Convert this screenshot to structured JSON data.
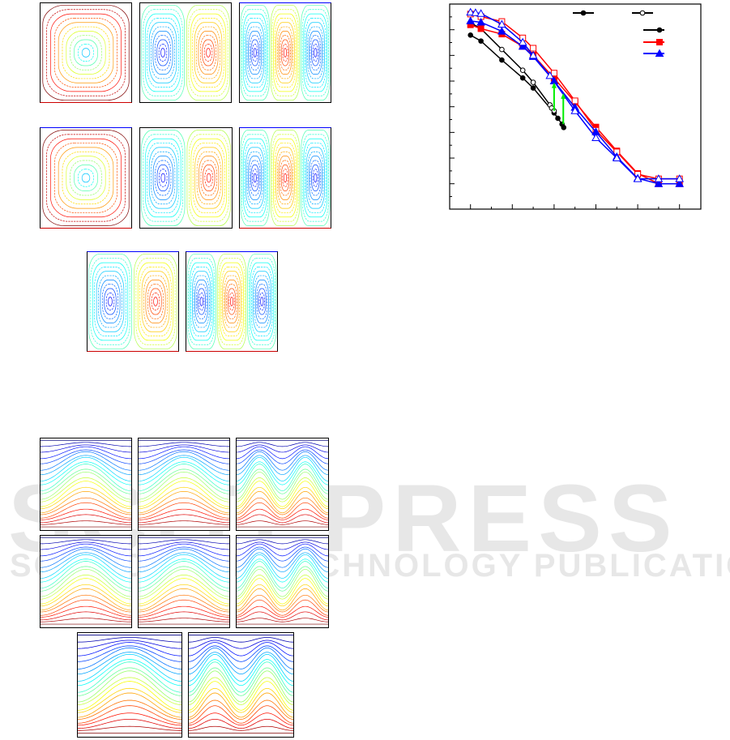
{
  "watermark": {
    "line1": "SCITEPRESS",
    "line2": "SCIENCE AND TECHNOLOGY PUBLICATIONS"
  },
  "colors": {
    "black": "#000000",
    "red": "#ff0000",
    "blue": "#0000ff",
    "arrow": "#00ee00"
  },
  "streamline_panels": [
    {
      "cells": 1,
      "top": "#000000",
      "bottom": "#cc0000"
    },
    {
      "cells": 2,
      "top": "#000000",
      "bottom": "#000000"
    },
    {
      "cells": 3,
      "top": "#0000ff",
      "bottom": "#000000"
    },
    {
      "cells": 1,
      "top": "#0000ff",
      "bottom": "#cc0000"
    },
    {
      "cells": 2,
      "top": "#000000",
      "bottom": "#000000"
    },
    {
      "cells": 3,
      "top": "#0000ff",
      "bottom": "#cc0000"
    },
    {
      "cells": 2,
      "top": "#0000ff",
      "bottom": "#cc0000"
    },
    {
      "cells": 3,
      "top": "#0000ff",
      "bottom": "#cc0000"
    }
  ],
  "isotherm_panels": [
    {
      "waves": 1
    },
    {
      "waves": 1
    },
    {
      "waves": 2
    },
    {
      "waves": 1
    },
    {
      "waves": 1
    },
    {
      "waves": 2
    },
    {
      "waves": 1
    },
    {
      "waves": 2
    }
  ],
  "chart_data": {
    "type": "line",
    "title": "",
    "xlabel": "",
    "ylabel": "",
    "xlim": [
      -0.5,
      5.5
    ],
    "ylim": [
      -0.7,
      7.0
    ],
    "xticks_major": [
      0,
      1,
      2,
      3,
      4,
      5
    ],
    "yticks_major": [
      0,
      1,
      2,
      3,
      4,
      5,
      6
    ],
    "grid": false,
    "legend": "top-right",
    "series": [
      {
        "color": "#000000",
        "marker": "circle-filled",
        "x": [
          0,
          0.25,
          0.75,
          1.25,
          1.5,
          2.0,
          2.09,
          2.19,
          2.23
        ],
        "y": [
          5.79,
          5.56,
          4.82,
          4.12,
          3.73,
          2.76,
          2.55,
          2.32,
          2.19
        ]
      },
      {
        "color": "#000000",
        "marker": "circle-open",
        "x": [
          0,
          0.25,
          0.75,
          1.25,
          1.5,
          1.9,
          1.94,
          2.0
        ],
        "y": [
          6.27,
          6.04,
          5.23,
          4.42,
          3.95,
          3.07,
          2.95,
          2.84
        ]
      },
      {
        "color": "#ff0000",
        "marker": "square-filled",
        "x": [
          0,
          0.25,
          0.75,
          1.25,
          1.5,
          2.0,
          2.5,
          3.0,
          3.5,
          4.0,
          4.5,
          5.0
        ],
        "y": [
          6.19,
          6.04,
          5.83,
          5.35,
          5.01,
          4.11,
          3.18,
          2.21,
          1.28,
          0.4,
          0,
          0
        ]
      },
      {
        "color": "#ff0000",
        "marker": "square-open",
        "x": [
          0,
          0.25,
          0.75,
          1.25,
          1.5,
          2.0,
          2.5,
          3.0,
          3.5,
          4.0,
          4.5,
          5.0
        ],
        "y": [
          6.61,
          6.51,
          6.32,
          5.68,
          5.28,
          4.31,
          3.23,
          2.08,
          1.24,
          0.37,
          0.19,
          0.19
        ]
      },
      {
        "color": "#0000ff",
        "marker": "triangle-filled",
        "x": [
          0,
          0.25,
          0.75,
          1.25,
          1.5,
          2.0,
          2.5,
          3.0,
          3.5,
          4.0,
          4.5,
          5.0
        ],
        "y": [
          6.34,
          6.29,
          5.94,
          5.35,
          4.95,
          4.0,
          2.97,
          2.02,
          1.05,
          0.21,
          0,
          0
        ]
      },
      {
        "color": "#0000ff",
        "marker": "triangle-open",
        "x": [
          0,
          0.12,
          0.25,
          0.75,
          1.25,
          1.5,
          1.9,
          2.5,
          3.0,
          3.5,
          4.0,
          4.5,
          5.0
        ],
        "y": [
          6.68,
          6.66,
          6.63,
          6.21,
          5.51,
          5.0,
          4.21,
          2.84,
          1.79,
          1.0,
          0.19,
          0.19,
          0.19
        ]
      }
    ],
    "arrows": [
      {
        "x": 2.0,
        "y_from": 2.84,
        "y_to": 3.95,
        "color": "#00ee00"
      },
      {
        "x": 2.22,
        "y_from": 2.32,
        "y_to": 3.53,
        "color": "#00ee00"
      }
    ],
    "legend_entries": [
      {
        "color": "#000000",
        "marker": "circle-filled"
      },
      {
        "color": "#000000",
        "marker": "circle-open"
      },
      {
        "color": "#000000",
        "marker": "circle-filled"
      },
      {
        "color": "#ff0000",
        "marker": "square-filled"
      },
      {
        "color": "#0000ff",
        "marker": "triangle-filled"
      }
    ]
  }
}
